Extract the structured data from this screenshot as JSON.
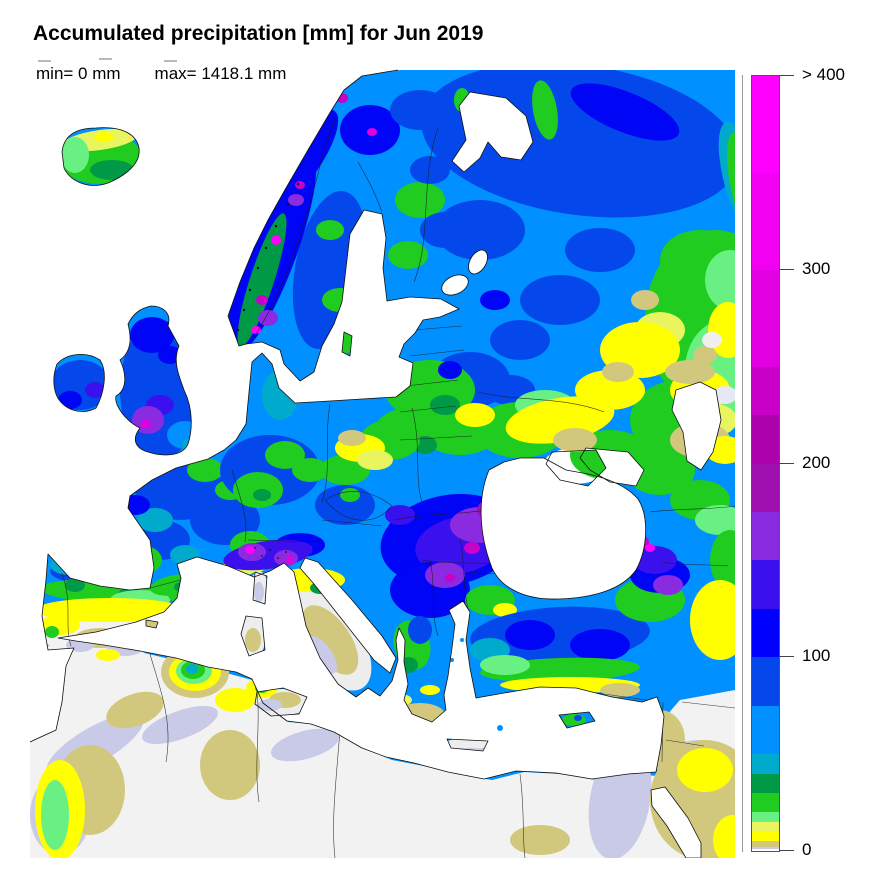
{
  "title": "Accumulated precipitation [mm] for Jun 2019",
  "stats": {
    "min": "min= 0 mm",
    "max": "max= 1418.1 mm"
  },
  "colorbar": {
    "range": [
      0,
      400
    ],
    "open_ended_top": true,
    "ticks": [
      {
        "value": 0,
        "label": "0"
      },
      {
        "value": 100,
        "label": "100"
      },
      {
        "value": 200,
        "label": "200"
      },
      {
        "value": 300,
        "label": "300"
      },
      {
        "value": 400,
        "label": "> 400"
      }
    ],
    "segments": [
      {
        "from": 0,
        "to": 1,
        "color": "#FFFFFF"
      },
      {
        "from": 1,
        "to": 2,
        "color": "#C9C9E8"
      },
      {
        "from": 2,
        "to": 5,
        "color": "#D2C87D"
      },
      {
        "from": 5,
        "to": 10,
        "color": "#FFFF00"
      },
      {
        "from": 10,
        "to": 15,
        "color": "#E9F55E"
      },
      {
        "from": 15,
        "to": 20,
        "color": "#69F083"
      },
      {
        "from": 20,
        "to": 30,
        "color": "#1FCC1F"
      },
      {
        "from": 30,
        "to": 40,
        "color": "#009946"
      },
      {
        "from": 40,
        "to": 50,
        "color": "#00AACC"
      },
      {
        "from": 50,
        "to": 75,
        "color": "#0090FF"
      },
      {
        "from": 75,
        "to": 100,
        "color": "#0448EC"
      },
      {
        "from": 100,
        "to": 125,
        "color": "#0000FF"
      },
      {
        "from": 125,
        "to": 150,
        "color": "#3A10EE"
      },
      {
        "from": 150,
        "to": 175,
        "color": "#8A2BE2"
      },
      {
        "from": 175,
        "to": 200,
        "color": "#A010B0"
      },
      {
        "from": 200,
        "to": 225,
        "color": "#AD00AD"
      },
      {
        "from": 225,
        "to": 250,
        "color": "#C800C8"
      },
      {
        "from": 250,
        "to": 300,
        "color": "#E100E1"
      },
      {
        "from": 300,
        "to": 350,
        "color": "#F200F2"
      },
      {
        "from": 350,
        "to": 400,
        "color": "#FF00FF"
      }
    ]
  },
  "map": {
    "region": "Europe, Iceland to the Caspian Sea and Scandinavia to North Africa",
    "sea_color": "#FFFFFF",
    "notable_features": [
      "Very high totals (purple/magenta, 150->400 mm) over the Alps, Carpathians/Balkans, west Norway coast, NW Britain and the Caucasus",
      "Widespread 50-125 mm (blues) across central Europe, eastern Europe and NW Russia",
      "Dry (<5 mm, white/khaki/lavender) across southern Iberia, central Italy, North Africa and the Middle East",
      "Iceland mostly 15-40 mm (greens)",
      "Yellow 5-15 mm band across Ukraine/southern Russia and eastern edge"
    ]
  }
}
